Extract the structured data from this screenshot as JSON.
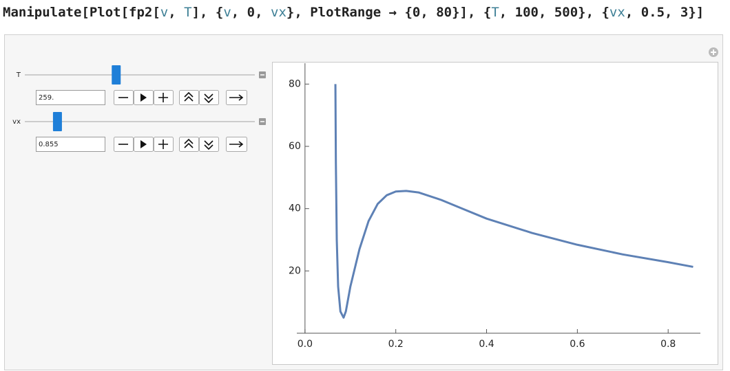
{
  "code": [
    "Manipulate[Plot[fp2[",
    "v",
    ", ",
    "T",
    "], {",
    "v",
    ", 0, ",
    "vx",
    "}, PlotRange → {0, 80}], {",
    "T",
    ", 100, 500}, {",
    "vx",
    ", 0.5, 3}]"
  ],
  "controls": [
    {
      "label": "T",
      "value": 259,
      "value_label": "259.",
      "min": 100,
      "max": 500
    },
    {
      "label": "vx",
      "value": 0.855,
      "value_label": "0.855",
      "min": 0.5,
      "max": 3
    }
  ],
  "chart_data": {
    "type": "line",
    "color": "#5e81b5",
    "x": [
      0.067,
      0.068,
      0.07,
      0.073,
      0.078,
      0.085,
      0.09,
      0.1,
      0.12,
      0.14,
      0.16,
      0.18,
      0.2,
      0.223,
      0.25,
      0.3,
      0.35,
      0.4,
      0.5,
      0.6,
      0.7,
      0.8,
      0.855
    ],
    "values": [
      80,
      55,
      30,
      15,
      7,
      5,
      7,
      15,
      27,
      36,
      41.5,
      44.3,
      45.5,
      45.7,
      45.2,
      42.8,
      39.8,
      36.8,
      32.2,
      28.4,
      25.3,
      22.8,
      21.3
    ],
    "xlim": [
      -0.018,
      0.871
    ],
    "ylim": [
      0,
      86.7
    ],
    "xticks": [
      {
        "value": 0,
        "label": "0.0"
      },
      0.2,
      0.4,
      0.6,
      0.8
    ],
    "yticks": [
      20,
      40,
      60,
      80
    ]
  }
}
